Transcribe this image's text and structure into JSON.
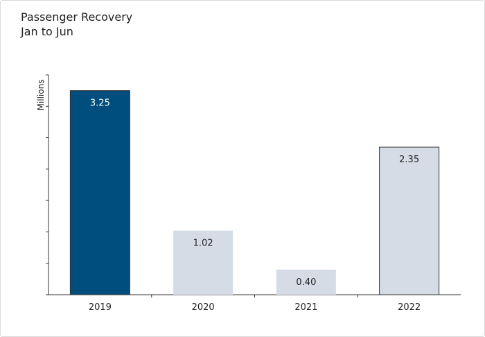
{
  "title": "Passenger Recovery",
  "subtitle": "Jan to Jun",
  "colors": {
    "highlight": "#004e7d",
    "normal": "#d6dce6",
    "stroke": "#333333",
    "axis": "#333333"
  },
  "chart_data": {
    "type": "bar",
    "title": "Passenger Recovery",
    "subtitle": "Jan to Jun",
    "xlabel": "",
    "ylabel": "Millions",
    "categories": [
      "2019",
      "2020",
      "2021",
      "2022"
    ],
    "values": [
      3.25,
      1.02,
      0.4,
      2.35
    ],
    "value_labels": [
      "3.25",
      "1.02",
      "0.40",
      "2.35"
    ],
    "highlight": [
      true,
      false,
      false,
      false
    ],
    "outlined": [
      true,
      false,
      false,
      true
    ],
    "ylim": [
      0,
      3.5
    ],
    "yticks": [
      0,
      0.5,
      1,
      1.5,
      2,
      2.5,
      3,
      3.5
    ],
    "grid": false,
    "legend": "none"
  }
}
